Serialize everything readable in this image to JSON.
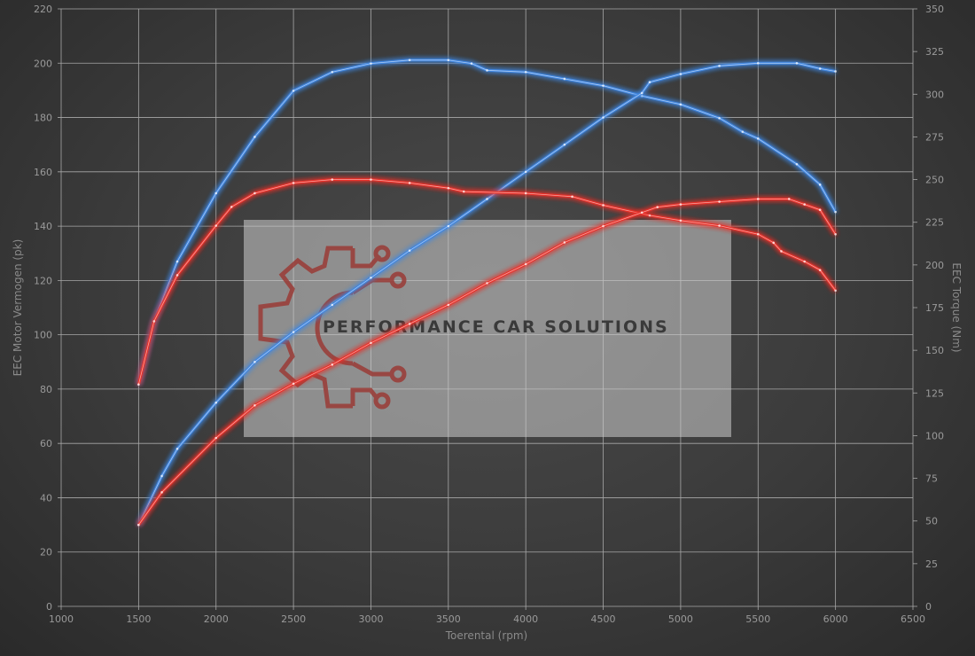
{
  "chart_data": {
    "type": "line",
    "title": "",
    "xlabel": "Toerental (rpm)",
    "ylabel": "EEC Motor Vermogen (pk)",
    "y2label": "EEC Torque (Nm)",
    "xlim": [
      1000,
      6500
    ],
    "ylim": [
      0,
      220
    ],
    "y2lim": [
      0,
      350
    ],
    "xticks": [
      1000,
      1500,
      2000,
      2500,
      3000,
      3500,
      4000,
      4500,
      5000,
      5500,
      6000,
      6500
    ],
    "yticks": [
      0,
      20,
      40,
      60,
      80,
      100,
      120,
      140,
      160,
      180,
      200,
      220
    ],
    "y2ticks": [
      0,
      25,
      50,
      75,
      100,
      125,
      150,
      175,
      200,
      225,
      250,
      275,
      300,
      325,
      350
    ],
    "grid": true,
    "watermark": "PERFORMANCE CAR SOLUTIONS",
    "series": [
      {
        "axis": "right",
        "color": "#3f86e0",
        "x": [
          1500,
          1600,
          1750,
          2000,
          2250,
          2500,
          2750,
          3000,
          3250,
          3500,
          3650,
          3750,
          4000,
          4250,
          4500,
          4750,
          5000,
          5250,
          5400,
          5500,
          5750,
          5900,
          6000
        ],
        "values": [
          130,
          167,
          202,
          242,
          275,
          302,
          313,
          318,
          320,
          320,
          318,
          314,
          313,
          309,
          305,
          299,
          294,
          286,
          278,
          274,
          259,
          247,
          231
        ]
      },
      {
        "axis": "left",
        "color": "#3f86e0",
        "x": [
          1500,
          1650,
          1750,
          2000,
          2250,
          2500,
          2750,
          3000,
          3250,
          3500,
          3750,
          4000,
          4250,
          4500,
          4750,
          4800,
          5000,
          5250,
          5500,
          5750,
          5900,
          6000
        ],
        "values": [
          30,
          48,
          58,
          75,
          90,
          101,
          111,
          121,
          131,
          140,
          150,
          160,
          170,
          180,
          189,
          193,
          196,
          199,
          200,
          200,
          198,
          197
        ]
      },
      {
        "axis": "right",
        "color": "#e8302a",
        "x": [
          1500,
          1600,
          1750,
          2000,
          2100,
          2250,
          2500,
          2750,
          3000,
          3250,
          3500,
          3600,
          4000,
          4300,
          4500,
          4800,
          5000,
          5250,
          5500,
          5600,
          5650,
          5800,
          5900,
          6000
        ],
        "values": [
          130,
          167,
          194,
          223,
          234,
          242,
          248,
          250,
          250,
          248,
          245,
          243,
          242,
          240,
          235,
          229,
          226,
          223,
          218,
          213,
          208,
          202,
          197,
          185
        ]
      },
      {
        "axis": "left",
        "color": "#e8302a",
        "x": [
          1500,
          1650,
          2000,
          2250,
          2500,
          2750,
          3000,
          3250,
          3500,
          3750,
          4000,
          4250,
          4500,
          4750,
          4850,
          5000,
          5250,
          5500,
          5700,
          5800,
          5900,
          6000
        ],
        "values": [
          30,
          42,
          62,
          74,
          82,
          89,
          97,
          104,
          111,
          119,
          126,
          134,
          140,
          145,
          147,
          148,
          149,
          150,
          150,
          148,
          146,
          137
        ]
      }
    ]
  }
}
